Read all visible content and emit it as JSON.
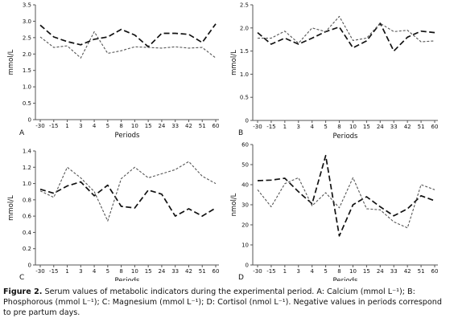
{
  "caption": {
    "label": "Figure 2.",
    "text": " Serum values of metabolic indicators during the experimental period. A: Calcium (mmol L⁻¹); B: Phosphorous (mmol L⁻¹); C: Magnesium (mmol L⁻¹); D: Cortisol (nmol L⁻¹). Negative values in periods correspond to pre partum days."
  },
  "chart_data": [
    {
      "type": "line",
      "panel": "A",
      "xlabel": "Periods",
      "ylabel": "mmol/L",
      "ylim": [
        0,
        3.5
      ],
      "yticks": [
        "0",
        "0.5",
        "1.0",
        "1.5",
        "2.0",
        "2.5",
        "3.0",
        "3.5"
      ],
      "categories": [
        "-30",
        "-15",
        "1",
        "3",
        "4",
        "5",
        "8",
        "10",
        "15",
        "24",
        "33",
        "42",
        "51",
        "60"
      ],
      "series": [
        {
          "style": "long-dash",
          "color": "#111111",
          "values": [
            2.88,
            2.52,
            2.38,
            2.28,
            2.45,
            2.52,
            2.75,
            2.58,
            2.22,
            2.63,
            2.63,
            2.6,
            2.35,
            2.92
          ]
        },
        {
          "style": "short-dash",
          "color": "#555555",
          "values": [
            2.52,
            2.2,
            2.25,
            1.88,
            2.68,
            2.02,
            2.1,
            2.22,
            2.2,
            2.18,
            2.22,
            2.18,
            2.2,
            1.88
          ]
        }
      ]
    },
    {
      "type": "line",
      "panel": "B",
      "xlabel": "Periods",
      "ylabel": "mmol/L",
      "ylim": [
        0,
        2.5
      ],
      "yticks": [
        "0",
        "0.5",
        "1.0",
        "1.5",
        "2.0",
        "2.5"
      ],
      "categories": [
        "-30",
        "-15",
        "1",
        "3",
        "4",
        "5",
        "8",
        "10",
        "15",
        "24",
        "33",
        "42",
        "51",
        "60"
      ],
      "series": [
        {
          "style": "long-dash",
          "color": "#111111",
          "values": [
            1.9,
            1.65,
            1.78,
            1.65,
            1.78,
            1.92,
            2.02,
            1.57,
            1.72,
            2.1,
            1.5,
            1.8,
            1.93,
            1.9
          ]
        },
        {
          "style": "short-dash",
          "color": "#555555",
          "values": [
            1.78,
            1.78,
            1.93,
            1.67,
            2.0,
            1.92,
            2.25,
            1.73,
            1.78,
            2.1,
            1.92,
            1.95,
            1.7,
            1.72
          ]
        }
      ]
    },
    {
      "type": "line",
      "panel": "C",
      "xlabel": "Periods",
      "ylabel": "mmol/L",
      "ylim": [
        0,
        1.4
      ],
      "yticks": [
        "0",
        "0.2",
        "0.4",
        "0.6",
        "0.8",
        "1.0",
        "1.2",
        "1.4"
      ],
      "categories": [
        "-30",
        "-15",
        "1",
        "3",
        "4",
        "5",
        "8",
        "10",
        "15",
        "24",
        "33",
        "42",
        "51",
        "60"
      ],
      "series": [
        {
          "style": "long-dash",
          "color": "#111111",
          "values": [
            0.93,
            0.88,
            0.97,
            1.02,
            0.85,
            0.98,
            0.72,
            0.7,
            0.92,
            0.87,
            0.6,
            0.69,
            0.6,
            0.7
          ]
        },
        {
          "style": "short-dash",
          "color": "#555555",
          "values": [
            0.91,
            0.83,
            1.2,
            1.07,
            0.9,
            0.54,
            1.06,
            1.2,
            1.07,
            1.12,
            1.17,
            1.27,
            1.09,
            1.0
          ]
        }
      ]
    },
    {
      "type": "line",
      "panel": "D",
      "xlabel": "Periods",
      "ylabel": "nmol/L",
      "ylim": [
        0,
        60
      ],
      "yticks": [
        "0",
        "10",
        "20",
        "30",
        "40",
        "50",
        "60"
      ],
      "categories": [
        "-30",
        "-15",
        "1",
        "3",
        "4",
        "5",
        "8",
        "10",
        "15",
        "24",
        "33",
        "42",
        "51",
        "60"
      ],
      "series": [
        {
          "style": "long-dash",
          "color": "#111111",
          "values": [
            42,
            42.3,
            43.2,
            36.5,
            30.5,
            54.5,
            14.5,
            30,
            34,
            29,
            24.5,
            28,
            34.5,
            32
          ]
        },
        {
          "style": "short-dash",
          "color": "#555555",
          "values": [
            37.5,
            29,
            40.5,
            43.5,
            29.5,
            36,
            28.5,
            43.5,
            28,
            27.5,
            21.5,
            18.5,
            40,
            37.5
          ]
        }
      ]
    }
  ]
}
